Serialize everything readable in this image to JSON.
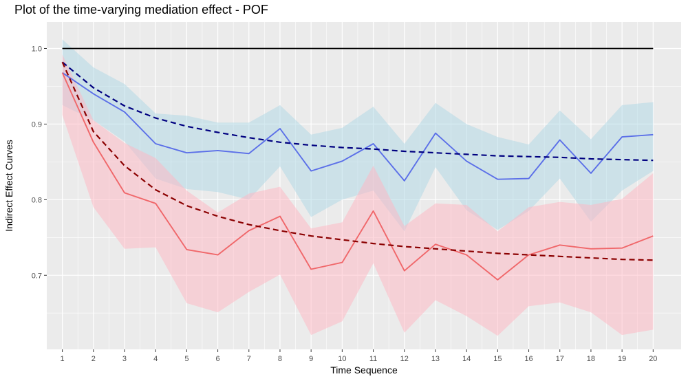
{
  "chart_data": {
    "type": "line",
    "title": "Plot of the time-varying mediation effect - POF",
    "xlabel": "Time Sequence",
    "ylabel": "Indirect Effect Curves",
    "x": [
      1,
      2,
      3,
      4,
      5,
      6,
      7,
      8,
      9,
      10,
      11,
      12,
      13,
      14,
      15,
      16,
      17,
      18,
      19,
      20
    ],
    "xlim": [
      0.5,
      20.9
    ],
    "ylim": [
      0.602,
      1.035
    ],
    "yticks": [
      0.7,
      0.8,
      0.9,
      1.0
    ],
    "ytick_labels": [
      "0.7",
      "0.8",
      "0.9",
      "1.0"
    ],
    "xtick_labels": [
      "1",
      "2",
      "3",
      "4",
      "5",
      "6",
      "7",
      "8",
      "9",
      "10",
      "11",
      "12",
      "13",
      "14",
      "15",
      "16",
      "17",
      "18",
      "19",
      "20"
    ],
    "grid": true,
    "reference_line": {
      "y": 1.0,
      "color": "#000000"
    },
    "bands": [
      {
        "color": "#ADD8E6",
        "lower": [
          0.925,
          0.905,
          0.877,
          0.828,
          0.814,
          0.81,
          0.8,
          0.844,
          0.777,
          0.8,
          0.812,
          0.758,
          0.843,
          0.786,
          0.76,
          0.785,
          0.828,
          0.771,
          0.812,
          0.838
        ],
        "upper": [
          1.012,
          0.975,
          0.953,
          0.914,
          0.911,
          0.902,
          0.902,
          0.925,
          0.886,
          0.895,
          0.923,
          0.874,
          0.928,
          0.9,
          0.883,
          0.873,
          0.918,
          0.88,
          0.925,
          0.929
        ]
      },
      {
        "color": "#FFB6C1",
        "lower": [
          0.912,
          0.79,
          0.735,
          0.737,
          0.663,
          0.651,
          0.678,
          0.701,
          0.621,
          0.639,
          0.716,
          0.624,
          0.667,
          0.646,
          0.62,
          0.659,
          0.664,
          0.651,
          0.621,
          0.628
        ],
        "upper": [
          0.992,
          0.905,
          0.875,
          0.855,
          0.812,
          0.783,
          0.808,
          0.817,
          0.762,
          0.77,
          0.845,
          0.765,
          0.795,
          0.793,
          0.758,
          0.79,
          0.797,
          0.793,
          0.801,
          0.835
        ]
      }
    ],
    "series": [
      {
        "style": "solid",
        "color": "#5B6FE8",
        "values": [
          0.968,
          0.94,
          0.916,
          0.874,
          0.862,
          0.865,
          0.861,
          0.894,
          0.838,
          0.851,
          0.874,
          0.825,
          0.888,
          0.851,
          0.827,
          0.828,
          0.879,
          0.835,
          0.883,
          0.886
        ]
      },
      {
        "style": "solid",
        "color": "#F0676A",
        "values": [
          0.968,
          0.876,
          0.809,
          0.795,
          0.734,
          0.727,
          0.759,
          0.778,
          0.708,
          0.717,
          0.785,
          0.706,
          0.741,
          0.727,
          0.694,
          0.727,
          0.74,
          0.735,
          0.736,
          0.752
        ]
      },
      {
        "style": "dashed",
        "color": "#000080",
        "values": [
          0.982,
          0.948,
          0.924,
          0.908,
          0.897,
          0.889,
          0.882,
          0.876,
          0.872,
          0.869,
          0.867,
          0.864,
          0.862,
          0.86,
          0.858,
          0.857,
          0.856,
          0.854,
          0.853,
          0.852
        ]
      },
      {
        "style": "dashed",
        "color": "#8B0000",
        "values": [
          0.982,
          0.89,
          0.845,
          0.813,
          0.792,
          0.778,
          0.767,
          0.759,
          0.752,
          0.747,
          0.742,
          0.738,
          0.735,
          0.732,
          0.729,
          0.727,
          0.725,
          0.723,
          0.721,
          0.72
        ]
      }
    ]
  }
}
